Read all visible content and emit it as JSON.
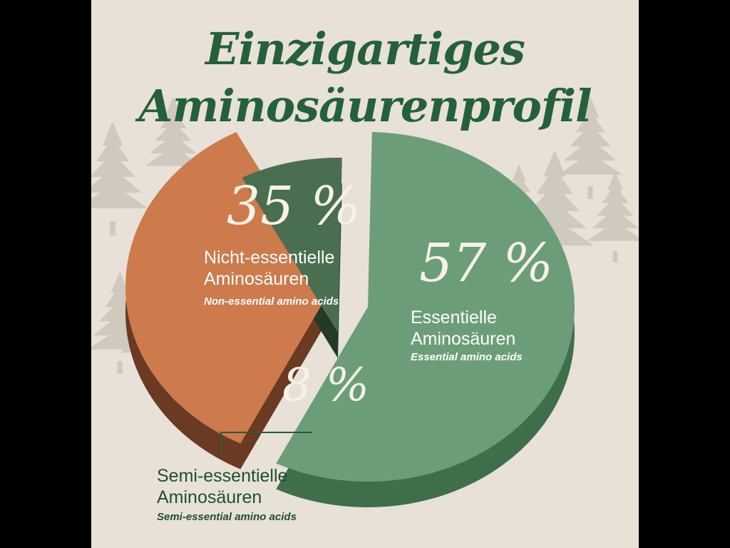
{
  "header": {
    "title_line1": "Einzigartiges",
    "title_line2": "Aminosäurenprofil"
  },
  "colors": {
    "background": "#e8e1d8",
    "title": "#24613a",
    "essential": "#6b9e78",
    "non_essential": "#cd7a4c",
    "semi_essential": "#4a6e50"
  },
  "chart_data": {
    "type": "pie",
    "slices": [
      {
        "value": 57,
        "label": "57 %",
        "name_de": "Essentielle\nAminosäuren",
        "name_en": "Essential amino acids"
      },
      {
        "value": 35,
        "label": "35 %",
        "name_de": "Nicht-essentielle\nAminosäuren",
        "name_en": "Non-essential amino acids"
      },
      {
        "value": 8,
        "label": "8 %",
        "name_de": "Semi-essentielle\nAminosäuren",
        "name_en": "Semi-essential amino acids"
      }
    ]
  },
  "labels": {
    "essential": {
      "pct": "57 %",
      "line1": "Essentielle",
      "line2": "Aminosäuren",
      "en": "Essential amino acids"
    },
    "non_essential": {
      "pct": "35 %",
      "line1": "Nicht-essentielle",
      "line2": "Aminosäuren",
      "en": "Non-essential amino acids"
    },
    "semi_essential": {
      "pct": "8 %",
      "line1": "Semi-essentielle",
      "line2": "Aminosäuren",
      "en": "Semi-essential amino acids"
    }
  }
}
